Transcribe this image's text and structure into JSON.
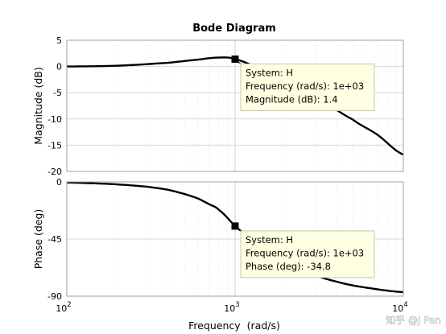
{
  "chart_data": {
    "type": "line",
    "title": "Bode Diagram",
    "xlabel": "Frequency  (rad/s)",
    "xscale": "log",
    "xlim": [
      100,
      10000
    ],
    "xticks": [
      {
        "base": "10",
        "exp": "2"
      },
      {
        "base": "10",
        "exp": "3"
      },
      {
        "base": "10",
        "exp": "4"
      }
    ],
    "grid": true,
    "line_color": "#000000",
    "magnitude": {
      "ylabel": "Magnitude (dB)",
      "ylim": [
        -20,
        5
      ],
      "yticks": [
        "5",
        "0",
        "-5",
        "-10",
        "-15",
        "-20"
      ],
      "x": [
        100,
        200,
        400,
        600,
        800,
        1000,
        1500,
        2000,
        3000,
        5000,
        7000,
        10000
      ],
      "y": [
        0.0,
        0.15,
        0.7,
        1.3,
        1.7,
        1.4,
        -0.8,
        -2.6,
        -5.8,
        -10.1,
        -13.0,
        -16.8
      ]
    },
    "phase": {
      "ylabel": "Phase (deg)",
      "ylim": [
        -90,
        0
      ],
      "yticks": [
        "0",
        "-45",
        "-90"
      ],
      "x": [
        100,
        150,
        200,
        300,
        400,
        500,
        600,
        700,
        800,
        1000,
        1300,
        1600,
        2000,
        2500,
        3000,
        4000,
        5000,
        6000,
        8000,
        10000
      ],
      "y": [
        -0.5,
        -1.2,
        -2.0,
        -3.8,
        -6.2,
        -9.5,
        -13.0,
        -17.5,
        -22.0,
        -34.8,
        -47.0,
        -57.0,
        -64.0,
        -70.0,
        -74.0,
        -78.5,
        -81.5,
        -83.3,
        -85.6,
        -86.8
      ]
    },
    "datatips": [
      {
        "panel": "magnitude",
        "x": 1000,
        "y": 1.4,
        "lines": [
          "System: H",
          "Frequency (rad/s): 1e+03",
          "Magnitude (dB): 1.4"
        ]
      },
      {
        "panel": "phase",
        "x": 1000,
        "y": -34.8,
        "lines": [
          "System: H",
          "Frequency (rad/s): 1e+03",
          "Phase (deg): -34.8"
        ]
      }
    ],
    "datatip_fill": "#ffffe1"
  },
  "watermark": "知乎 @J Pan"
}
